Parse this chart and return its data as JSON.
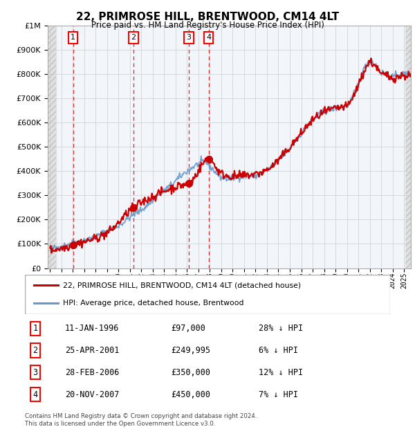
{
  "title": "22, PRIMROSE HILL, BRENTWOOD, CM14 4LT",
  "subtitle": "Price paid vs. HM Land Registry's House Price Index (HPI)",
  "ylim": [
    0,
    1000000
  ],
  "yticks": [
    0,
    100000,
    200000,
    300000,
    400000,
    500000,
    600000,
    700000,
    800000,
    900000,
    1000000
  ],
  "xlim_start": 1993.8,
  "xlim_end": 2025.6,
  "hatch_left_end": 1994.5,
  "hatch_right_start": 2025.1,
  "purchases": [
    {
      "date": 1996.03,
      "price": 97000,
      "label": "1"
    },
    {
      "date": 2001.32,
      "price": 249995,
      "label": "2"
    },
    {
      "date": 2006.16,
      "price": 350000,
      "label": "3"
    },
    {
      "date": 2007.9,
      "price": 450000,
      "label": "4"
    }
  ],
  "hpi_color": "#6699cc",
  "price_color": "#cc0000",
  "legend_property": "22, PRIMROSE HILL, BRENTWOOD, CM14 4LT (detached house)",
  "legend_hpi": "HPI: Average price, detached house, Brentwood",
  "table_rows": [
    {
      "num": "1",
      "date": "11-JAN-1996",
      "price": "£97,000",
      "note": "28% ↓ HPI"
    },
    {
      "num": "2",
      "date": "25-APR-2001",
      "price": "£249,995",
      "note": "6% ↓ HPI"
    },
    {
      "num": "3",
      "date": "28-FEB-2006",
      "price": "£350,000",
      "note": "12% ↓ HPI"
    },
    {
      "num": "4",
      "date": "20-NOV-2007",
      "price": "£450,000",
      "note": "7% ↓ HPI"
    }
  ],
  "footer": "Contains HM Land Registry data © Crown copyright and database right 2024.\nThis data is licensed under the Open Government Licence v3.0.",
  "hpi_anchors_x": [
    1994.0,
    1995.0,
    1996.0,
    1997.0,
    1998.0,
    1999.0,
    2000.0,
    2001.0,
    2002.0,
    2003.0,
    2004.0,
    2005.0,
    2006.0,
    2007.0,
    2007.5,
    2008.0,
    2008.5,
    2009.0,
    2009.5,
    2010.0,
    2011.0,
    2012.0,
    2013.0,
    2014.0,
    2015.0,
    2016.0,
    2017.0,
    2018.0,
    2019.0,
    2020.0,
    2021.0,
    2021.5,
    2022.0,
    2022.5,
    2023.0,
    2023.5,
    2024.0,
    2024.5,
    2025.0,
    2025.6
  ],
  "hpi_anchors_y": [
    80000,
    90000,
    105000,
    115000,
    130000,
    155000,
    175000,
    210000,
    240000,
    280000,
    320000,
    360000,
    400000,
    430000,
    440000,
    420000,
    395000,
    375000,
    368000,
    372000,
    380000,
    382000,
    405000,
    445000,
    495000,
    555000,
    610000,
    645000,
    660000,
    672000,
    760000,
    820000,
    855000,
    840000,
    805000,
    800000,
    790000,
    795000,
    800000,
    800000
  ],
  "price_anchors_x": [
    1994.0,
    1995.5,
    1996.03,
    1997.5,
    1999.0,
    2001.32,
    2003.0,
    2005.0,
    2006.16,
    2007.9,
    2009.0,
    2010.0,
    2011.0,
    2012.0,
    2013.0,
    2014.0,
    2015.0,
    2016.0,
    2017.0,
    2018.0,
    2019.0,
    2020.0,
    2021.0,
    2021.5,
    2022.0,
    2022.5,
    2023.0,
    2023.5,
    2024.0,
    2024.5,
    2025.0,
    2025.6
  ],
  "price_anchors_y": [
    75000,
    88000,
    97000,
    115000,
    145000,
    249995,
    295000,
    335000,
    350000,
    450000,
    390000,
    378000,
    382000,
    388000,
    405000,
    445000,
    498000,
    555000,
    610000,
    642000,
    658000,
    668000,
    755000,
    810000,
    850000,
    835000,
    800000,
    795000,
    785000,
    790000,
    795000,
    795000
  ]
}
